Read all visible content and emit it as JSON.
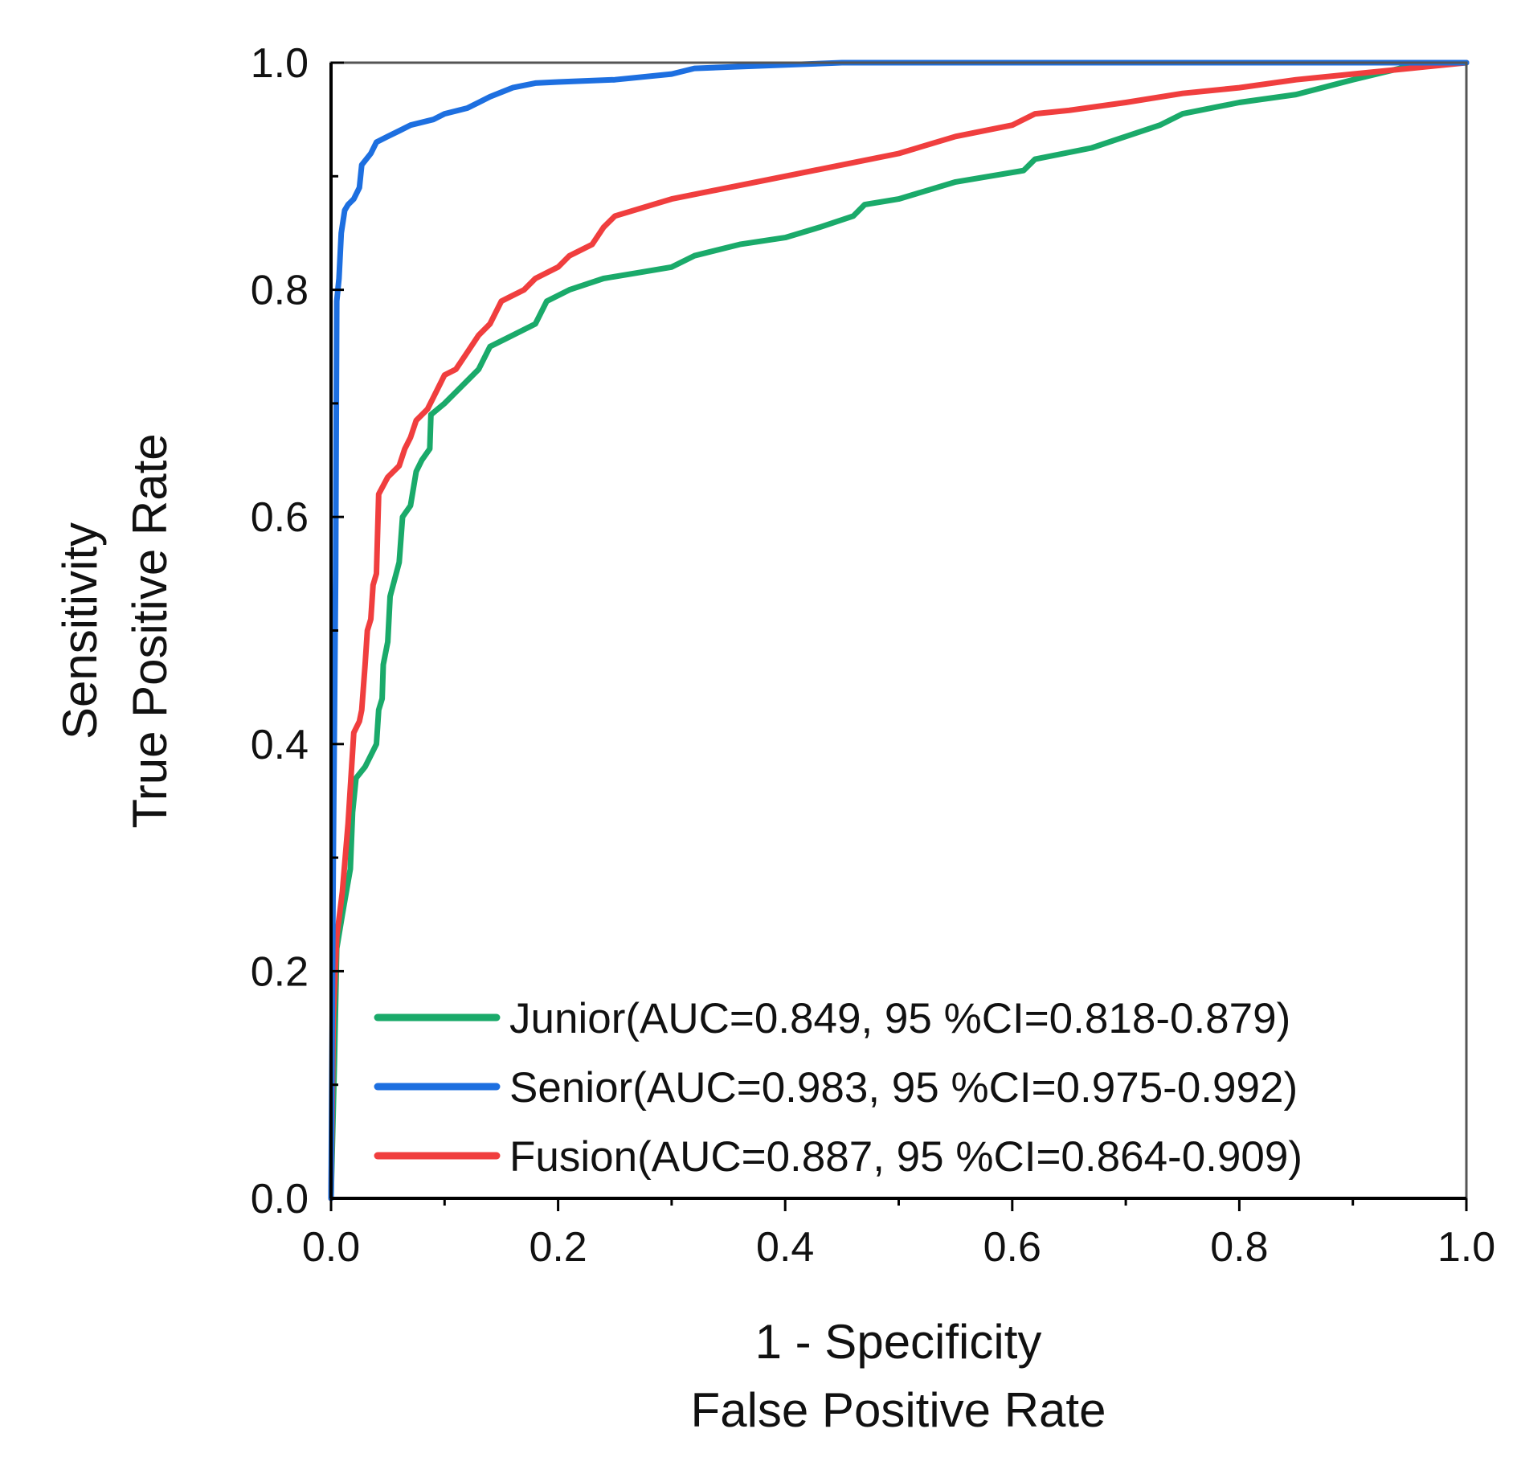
{
  "chart_data": {
    "type": "line",
    "xlabel": [
      "1 - Specificity",
      "False Positive Rate"
    ],
    "ylabel": [
      "Sensitivity",
      "True Positive Rate"
    ],
    "xlim": [
      0,
      1
    ],
    "ylim": [
      0,
      1
    ],
    "xticks": [
      "0.0",
      "0.2",
      "0.4",
      "0.6",
      "0.8",
      "1.0"
    ],
    "yticks": [
      "0.0",
      "0.2",
      "0.4",
      "0.6",
      "0.8",
      "1.0"
    ],
    "grid": false,
    "legend_position": "bottom-right",
    "series": [
      {
        "name": "Junior",
        "label": "Junior(AUC=0.849, 95 %CI=0.818-0.879)",
        "color": "#1aaa6a",
        "points": [
          [
            0,
            0
          ],
          [
            0.003,
            0.12
          ],
          [
            0.005,
            0.22
          ],
          [
            0.01,
            0.25
          ],
          [
            0.017,
            0.29
          ],
          [
            0.019,
            0.34
          ],
          [
            0.022,
            0.37
          ],
          [
            0.03,
            0.38
          ],
          [
            0.035,
            0.39
          ],
          [
            0.04,
            0.4
          ],
          [
            0.042,
            0.43
          ],
          [
            0.045,
            0.44
          ],
          [
            0.046,
            0.47
          ],
          [
            0.05,
            0.49
          ],
          [
            0.052,
            0.53
          ],
          [
            0.06,
            0.56
          ],
          [
            0.063,
            0.6
          ],
          [
            0.07,
            0.61
          ],
          [
            0.075,
            0.64
          ],
          [
            0.08,
            0.65
          ],
          [
            0.087,
            0.66
          ],
          [
            0.088,
            0.69
          ],
          [
            0.1,
            0.7
          ],
          [
            0.11,
            0.71
          ],
          [
            0.12,
            0.72
          ],
          [
            0.13,
            0.73
          ],
          [
            0.14,
            0.75
          ],
          [
            0.16,
            0.76
          ],
          [
            0.18,
            0.77
          ],
          [
            0.19,
            0.79
          ],
          [
            0.21,
            0.8
          ],
          [
            0.24,
            0.81
          ],
          [
            0.27,
            0.815
          ],
          [
            0.3,
            0.82
          ],
          [
            0.32,
            0.83
          ],
          [
            0.36,
            0.84
          ],
          [
            0.4,
            0.846
          ],
          [
            0.43,
            0.855
          ],
          [
            0.46,
            0.865
          ],
          [
            0.47,
            0.875
          ],
          [
            0.5,
            0.88
          ],
          [
            0.55,
            0.895
          ],
          [
            0.58,
            0.9
          ],
          [
            0.61,
            0.905
          ],
          [
            0.62,
            0.915
          ],
          [
            0.67,
            0.925
          ],
          [
            0.7,
            0.935
          ],
          [
            0.73,
            0.945
          ],
          [
            0.75,
            0.955
          ],
          [
            0.8,
            0.965
          ],
          [
            0.85,
            0.972
          ],
          [
            0.9,
            0.985
          ],
          [
            0.95,
            0.997
          ],
          [
            1.0,
            1.0
          ]
        ]
      },
      {
        "name": "Senior",
        "label": "Senior(AUC=0.983, 95 %CI=0.975-0.992)",
        "color": "#1d6fe0",
        "points": [
          [
            0,
            0
          ],
          [
            0.002,
            0.3
          ],
          [
            0.004,
            0.55
          ],
          [
            0.005,
            0.79
          ],
          [
            0.007,
            0.81
          ],
          [
            0.009,
            0.85
          ],
          [
            0.012,
            0.87
          ],
          [
            0.015,
            0.875
          ],
          [
            0.02,
            0.88
          ],
          [
            0.025,
            0.89
          ],
          [
            0.027,
            0.91
          ],
          [
            0.035,
            0.92
          ],
          [
            0.04,
            0.93
          ],
          [
            0.05,
            0.935
          ],
          [
            0.06,
            0.94
          ],
          [
            0.07,
            0.945
          ],
          [
            0.09,
            0.95
          ],
          [
            0.1,
            0.955
          ],
          [
            0.12,
            0.96
          ],
          [
            0.13,
            0.965
          ],
          [
            0.14,
            0.97
          ],
          [
            0.16,
            0.978
          ],
          [
            0.18,
            0.982
          ],
          [
            0.2,
            0.983
          ],
          [
            0.25,
            0.985
          ],
          [
            0.3,
            0.99
          ],
          [
            0.32,
            0.995
          ],
          [
            0.4,
            0.998
          ],
          [
            0.45,
            1.0
          ],
          [
            1.0,
            1.0
          ]
        ]
      },
      {
        "name": "Fusion",
        "label": "Fusion(AUC=0.887, 95 %CI=0.864-0.909)",
        "color": "#f03e3e",
        "points": [
          [
            0,
            0
          ],
          [
            0.002,
            0.16
          ],
          [
            0.005,
            0.23
          ],
          [
            0.01,
            0.27
          ],
          [
            0.015,
            0.33
          ],
          [
            0.02,
            0.41
          ],
          [
            0.025,
            0.42
          ],
          [
            0.027,
            0.43
          ],
          [
            0.03,
            0.47
          ],
          [
            0.032,
            0.5
          ],
          [
            0.035,
            0.51
          ],
          [
            0.037,
            0.54
          ],
          [
            0.04,
            0.55
          ],
          [
            0.042,
            0.62
          ],
          [
            0.05,
            0.635
          ],
          [
            0.06,
            0.645
          ],
          [
            0.065,
            0.66
          ],
          [
            0.07,
            0.67
          ],
          [
            0.075,
            0.685
          ],
          [
            0.085,
            0.695
          ],
          [
            0.09,
            0.705
          ],
          [
            0.1,
            0.725
          ],
          [
            0.11,
            0.73
          ],
          [
            0.12,
            0.745
          ],
          [
            0.13,
            0.76
          ],
          [
            0.14,
            0.77
          ],
          [
            0.15,
            0.79
          ],
          [
            0.17,
            0.8
          ],
          [
            0.18,
            0.81
          ],
          [
            0.2,
            0.82
          ],
          [
            0.21,
            0.83
          ],
          [
            0.23,
            0.84
          ],
          [
            0.24,
            0.855
          ],
          [
            0.25,
            0.865
          ],
          [
            0.3,
            0.88
          ],
          [
            0.35,
            0.89
          ],
          [
            0.4,
            0.9
          ],
          [
            0.45,
            0.91
          ],
          [
            0.5,
            0.92
          ],
          [
            0.55,
            0.935
          ],
          [
            0.6,
            0.945
          ],
          [
            0.62,
            0.955
          ],
          [
            0.65,
            0.958
          ],
          [
            0.7,
            0.965
          ],
          [
            0.75,
            0.973
          ],
          [
            0.8,
            0.978
          ],
          [
            0.85,
            0.985
          ],
          [
            0.9,
            0.99
          ],
          [
            0.95,
            0.995
          ],
          [
            1.0,
            1.0
          ]
        ]
      }
    ]
  }
}
